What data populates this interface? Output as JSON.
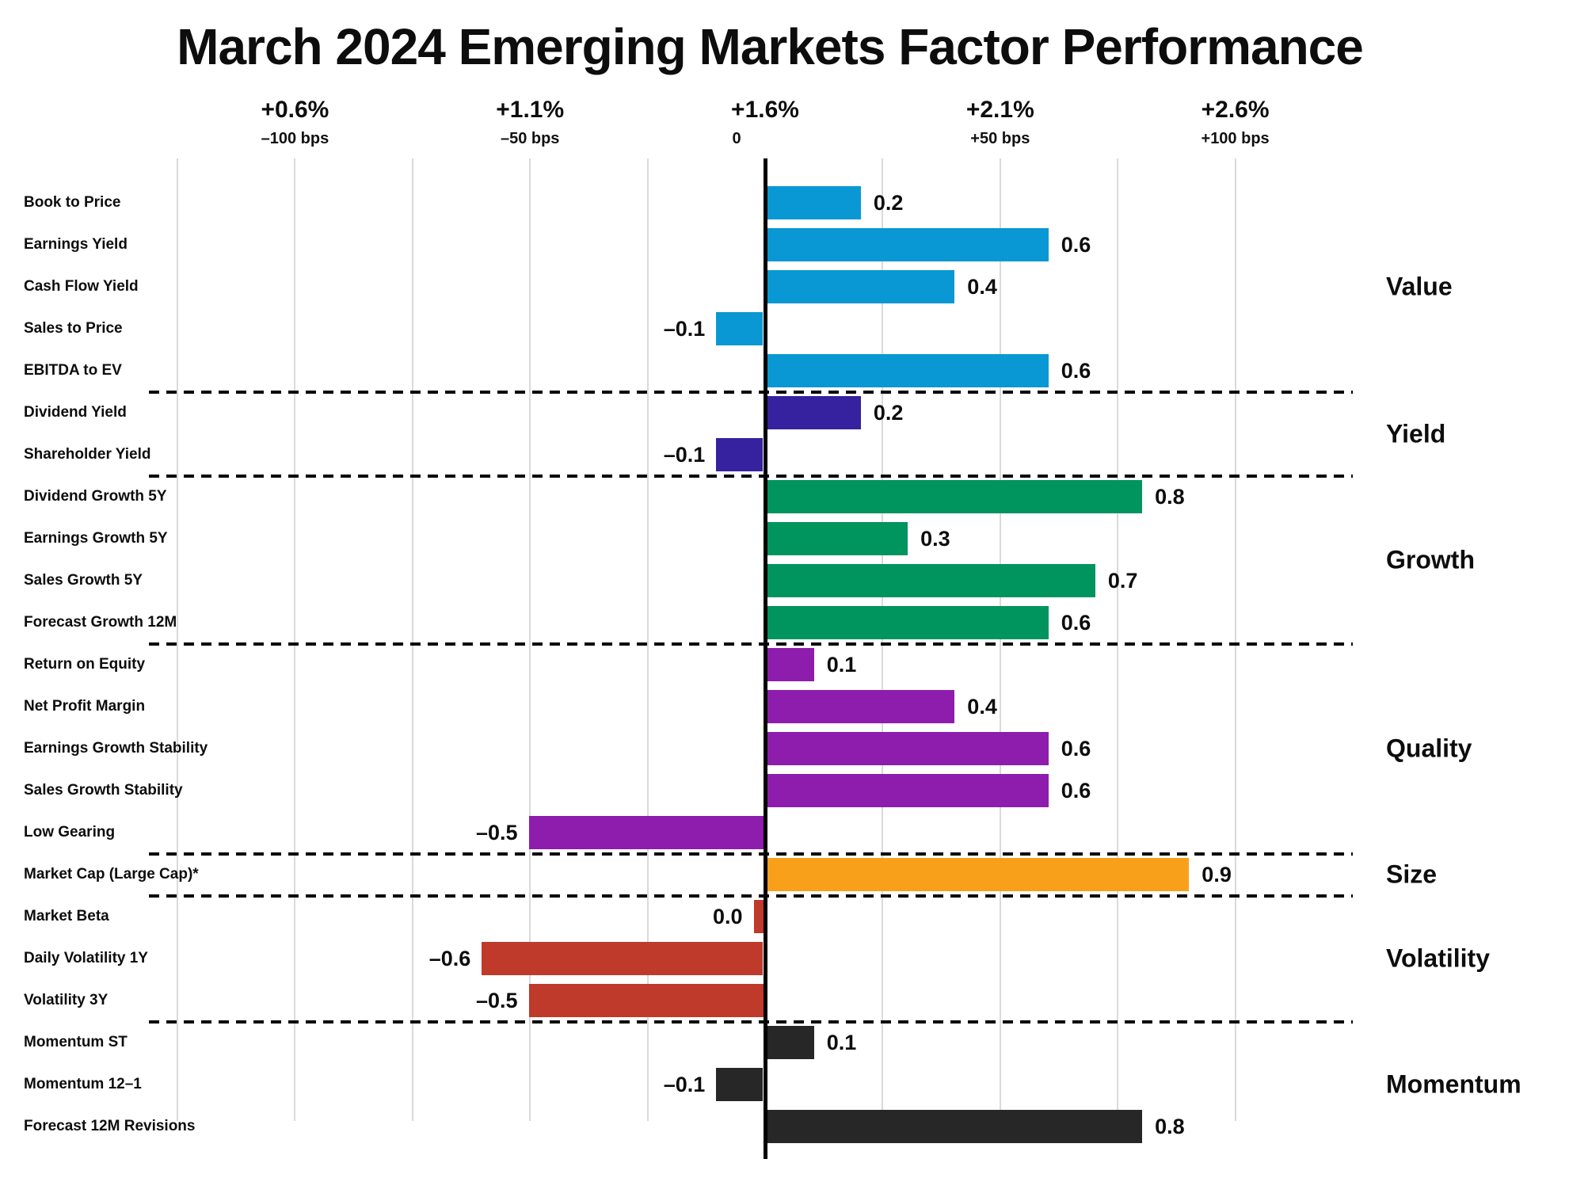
{
  "chart_data": {
    "type": "bar",
    "orientation": "horizontal",
    "title": "March 2024 Emerging Markets Factor Performance",
    "x_axis_ticks": [
      {
        "pct": "+0.6%",
        "bps": "–100 bps"
      },
      {
        "pct": "+1.1%",
        "bps": "–50 bps"
      },
      {
        "pct": "+1.6%",
        "bps": "0"
      },
      {
        "pct": "+2.1%",
        "bps": "+50 bps"
      },
      {
        "pct": "+2.6%",
        "bps": "+100 bps"
      }
    ],
    "x_axis_note": "top axis shows absolute % return with relative basis points below; zero line at +1.6%",
    "grid": true,
    "groups": [
      {
        "name": "Value",
        "color": "#0998d3",
        "bars": [
          {
            "label": "Book to Price",
            "value": 0.2,
            "display": "0.2"
          },
          {
            "label": "Earnings Yield",
            "value": 0.6,
            "display": "0.6"
          },
          {
            "label": "Cash Flow Yield",
            "value": 0.4,
            "display": "0.4"
          },
          {
            "label": "Sales to Price",
            "value": -0.1,
            "display": "–0.1"
          },
          {
            "label": "EBITDA to EV",
            "value": 0.6,
            "display": "0.6"
          }
        ]
      },
      {
        "name": "Yield",
        "color": "#36219e",
        "bars": [
          {
            "label": "Dividend Yield",
            "value": 0.2,
            "display": "0.2"
          },
          {
            "label": "Shareholder Yield",
            "value": -0.1,
            "display": "–0.1"
          }
        ]
      },
      {
        "name": "Growth",
        "color": "#00945f",
        "bars": [
          {
            "label": "Dividend Growth 5Y",
            "value": 0.8,
            "display": "0.8"
          },
          {
            "label": "Earnings Growth 5Y",
            "value": 0.3,
            "display": "0.3"
          },
          {
            "label": "Sales Growth 5Y",
            "value": 0.7,
            "display": "0.7"
          },
          {
            "label": "Forecast Growth 12M",
            "value": 0.6,
            "display": "0.6"
          }
        ]
      },
      {
        "name": "Quality",
        "color": "#8e1cad",
        "bars": [
          {
            "label": "Return on Equity",
            "value": 0.1,
            "display": "0.1"
          },
          {
            "label": "Net Profit Margin",
            "value": 0.4,
            "display": "0.4"
          },
          {
            "label": "Earnings Growth Stability",
            "value": 0.6,
            "display": "0.6"
          },
          {
            "label": "Sales Growth Stability",
            "value": 0.6,
            "display": "0.6"
          },
          {
            "label": "Low Gearing",
            "value": -0.5,
            "display": "–0.5"
          }
        ]
      },
      {
        "name": "Size",
        "color": "#f9a01b",
        "bars": [
          {
            "label": "Market Cap (Large Cap)*",
            "value": 0.9,
            "display": "0.9"
          }
        ]
      },
      {
        "name": "Volatility",
        "color": "#bf3a2a",
        "bars": [
          {
            "label": "Market Beta",
            "value": 0.0,
            "display": "0.0"
          },
          {
            "label": "Daily Volatility 1Y",
            "value": -0.6,
            "display": "–0.6"
          },
          {
            "label": "Volatility 3Y",
            "value": -0.5,
            "display": "–0.5"
          }
        ]
      },
      {
        "name": "Momentum",
        "color": "#272727",
        "bars": [
          {
            "label": "Momentum ST",
            "value": 0.1,
            "display": "0.1"
          },
          {
            "label": "Momentum 12–1",
            "value": -0.1,
            "display": "–0.1"
          },
          {
            "label": "Forecast 12M Revisions",
            "value": 0.8,
            "display": "0.8"
          }
        ]
      }
    ]
  }
}
